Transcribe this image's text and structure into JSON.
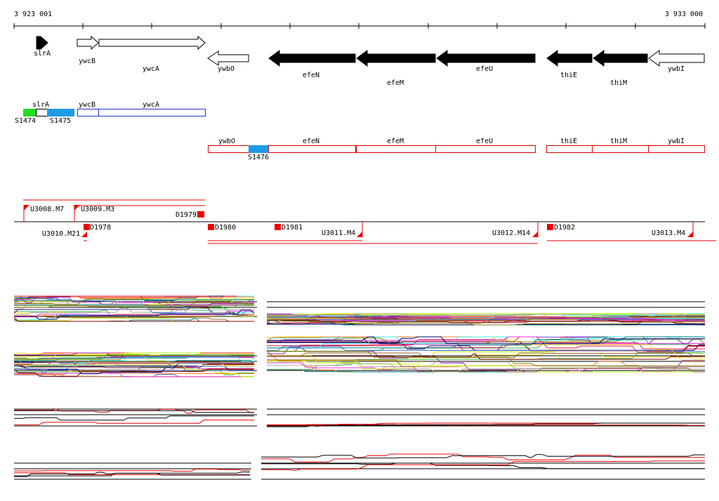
{
  "ruler": {
    "start": "3 923 001",
    "end": "3 933 000"
  },
  "genes": [
    "slrA",
    "ywcB",
    "ywcA",
    "ywbO",
    "efeN",
    "efeM",
    "efeU",
    "thiE",
    "thiM",
    "ywbI"
  ],
  "transcripts": {
    "labels": [
      "slrA",
      "ywcB",
      "ywcA",
      "ywbO",
      "efeN",
      "efeM",
      "efeU",
      "thiE",
      "thiM",
      "ywbI"
    ],
    "segments": [
      "S1474",
      "S1475",
      "S1476"
    ]
  },
  "markers": [
    "U3008.M7",
    "U3009.M3",
    "D1979",
    "U3010.M21",
    "D1978",
    "D1980",
    "D1981",
    "U3011.M4",
    "U3012.M14",
    "D1982",
    "U3013.M4"
  ]
}
